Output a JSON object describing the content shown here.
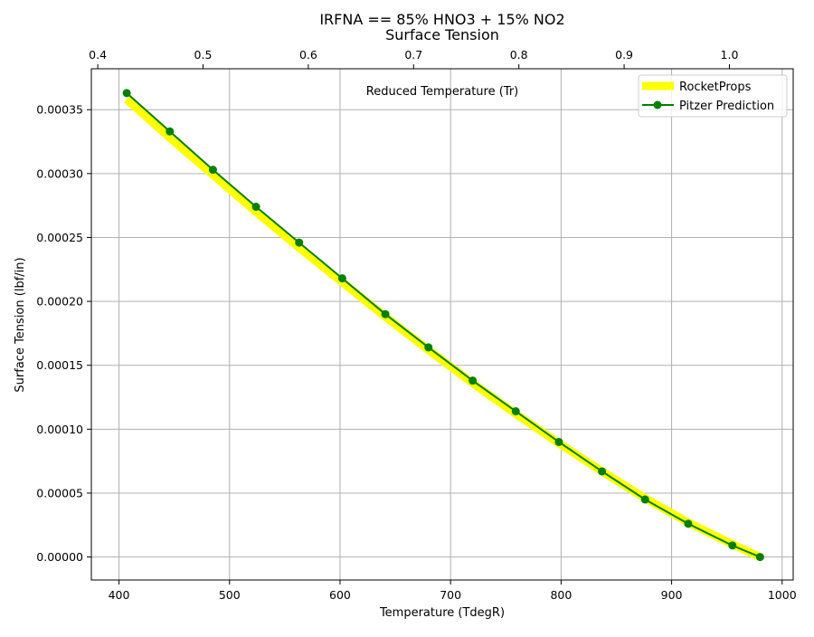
{
  "figure": {
    "title_line1": "IRFNA == 85% HNO3 + 15% NO2",
    "title_line2": "Surface Tension"
  },
  "colors": {
    "rocketprops_line": "#ffff00",
    "pitzer_line": "#008000",
    "grid": "#b0b0b0",
    "axes": "#000000",
    "background": "#ffffff"
  },
  "chart_data": {
    "type": "line",
    "title": "IRFNA == 85% HNO3 + 15% NO2\nSurface Tension",
    "xlabel": "Temperature (TdegR)",
    "ylabel": "Surface Tension (lbf/in)",
    "secondary_xlabel": "Reduced Temperature (Tr)",
    "xlim": [
      375,
      1010
    ],
    "ylim": [
      -1.8e-05,
      0.000382
    ],
    "secondary_xlim": [
      0.3939,
      1.0606
    ],
    "x_ticks": [
      400,
      500,
      600,
      700,
      800,
      900,
      1000
    ],
    "x_tick_labels": [
      "400",
      "500",
      "600",
      "700",
      "800",
      "900",
      "1000"
    ],
    "y_ticks": [
      0,
      5e-05,
      0.0001,
      0.00015,
      0.0002,
      0.00025,
      0.0003,
      0.00035
    ],
    "y_tick_labels": [
      "0.00000",
      "0.00005",
      "0.00010",
      "0.00015",
      "0.00020",
      "0.00025",
      "0.00030",
      "0.00035"
    ],
    "secondary_x_ticks": [
      0.4,
      0.5,
      0.6,
      0.7,
      0.8,
      0.9,
      1.0
    ],
    "secondary_x_tick_labels": [
      "0.4",
      "0.5",
      "0.6",
      "0.7",
      "0.8",
      "0.9",
      "1.0"
    ],
    "grid": true,
    "legend_position": "top-right",
    "series": [
      {
        "name": "RocketProps",
        "color": "#ffff00",
        "style": "thick-line",
        "x": [
          407,
          446,
          485,
          524,
          563,
          602,
          641,
          680,
          720,
          759,
          798,
          837,
          876,
          915,
          955,
          980
        ],
        "y": [
          0.000358,
          0.000328,
          0.000299,
          0.00027,
          0.000242,
          0.000215,
          0.000188,
          0.000162,
          0.000136,
          0.000112,
          8.9e-05,
          6.7e-05,
          4.6e-05,
          2.7e-05,
          1e-05,
          0.0
        ]
      },
      {
        "name": "Pitzer Prediction",
        "color": "#008000",
        "style": "line-with-circle-markers",
        "x": [
          407,
          446,
          485,
          524,
          563,
          602,
          641,
          680,
          720,
          759,
          798,
          837,
          876,
          915,
          955,
          980
        ],
        "y": [
          0.000363,
          0.000333,
          0.000303,
          0.000274,
          0.000246,
          0.000218,
          0.00019,
          0.000164,
          0.000138,
          0.000114,
          9e-05,
          6.7e-05,
          4.5e-05,
          2.6e-05,
          9e-06,
          0.0
        ]
      }
    ]
  }
}
